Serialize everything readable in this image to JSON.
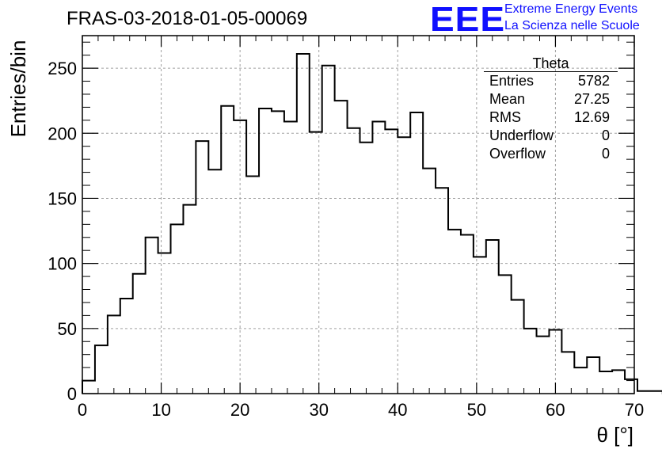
{
  "header": {
    "title": "FRAS-03-2018-01-05-00069",
    "logo_text": "EEE",
    "logo_line1": "Extreme Energy Events",
    "logo_line2": "La Scienza nelle Scuole",
    "logo_color": "#1010ff"
  },
  "stats": {
    "title": "Theta",
    "rows": [
      {
        "label": "Entries",
        "value": "5782"
      },
      {
        "label": "Mean",
        "value": "27.25"
      },
      {
        "label": "RMS",
        "value": "12.69"
      },
      {
        "label": "Underflow",
        "value": "0"
      },
      {
        "label": "Overflow",
        "value": "0"
      }
    ]
  },
  "chart_data": {
    "type": "bar",
    "style": "step-histogram",
    "title": "FRAS-03-2018-01-05-00069",
    "xlabel": "θ [°]",
    "ylabel": "Entries/bin",
    "xlim": [
      0,
      70
    ],
    "ylim": [
      0,
      275
    ],
    "x_ticks": [
      0,
      10,
      20,
      30,
      40,
      50,
      60,
      70
    ],
    "y_ticks": [
      0,
      50,
      100,
      150,
      200,
      250
    ],
    "grid": true,
    "bin_edges_start": 0,
    "bin_width": 1.6,
    "values": [
      10,
      37,
      60,
      73,
      92,
      120,
      108,
      130,
      145,
      194,
      172,
      221,
      210,
      167,
      219,
      217,
      209,
      261,
      201,
      252,
      225,
      204,
      193,
      209,
      203,
      197,
      216,
      173,
      158,
      126,
      122,
      105,
      118,
      91,
      72,
      50,
      44,
      49,
      32,
      20,
      28,
      17,
      18,
      11,
      2,
      2,
      0
    ]
  }
}
